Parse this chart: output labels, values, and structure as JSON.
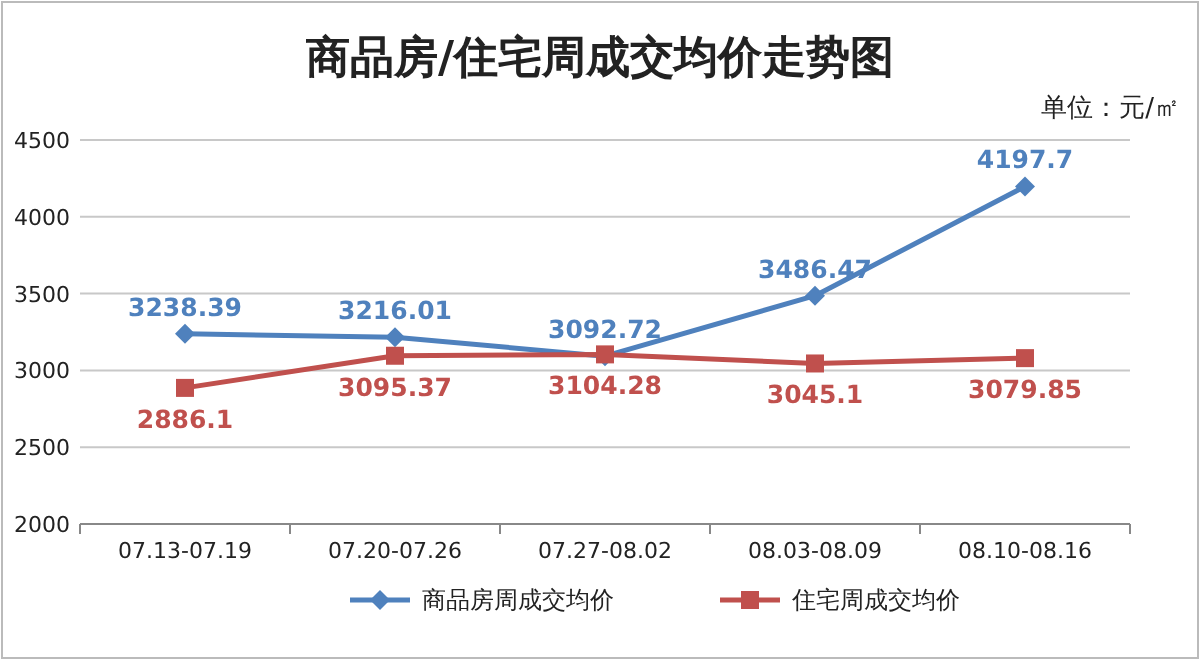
{
  "chart_data": {
    "type": "line",
    "title": "商品房/住宅周成交均价走势图",
    "annotations": [
      "单位：元/㎡"
    ],
    "categories": [
      "07.13-07.19",
      "07.20-07.26",
      "07.27-08.02",
      "08.03-08.09",
      "08.10-08.16"
    ],
    "series": [
      {
        "name": "商品房周成交均价",
        "color": "#4f81bd",
        "marker": "diamond",
        "values": [
          3238.39,
          3216.01,
          3092.72,
          3486.47,
          4197.7
        ]
      },
      {
        "name": "住宅周成交均价",
        "color": "#c0504d",
        "marker": "square",
        "values": [
          2886.1,
          3095.37,
          3104.28,
          3045.1,
          3079.85
        ]
      }
    ],
    "ylim": [
      2000,
      4500
    ],
    "yticks": [
      2000,
      2500,
      3000,
      3500,
      4000,
      4500
    ],
    "grid": "y",
    "legend": "bottom",
    "data_labels": true
  }
}
